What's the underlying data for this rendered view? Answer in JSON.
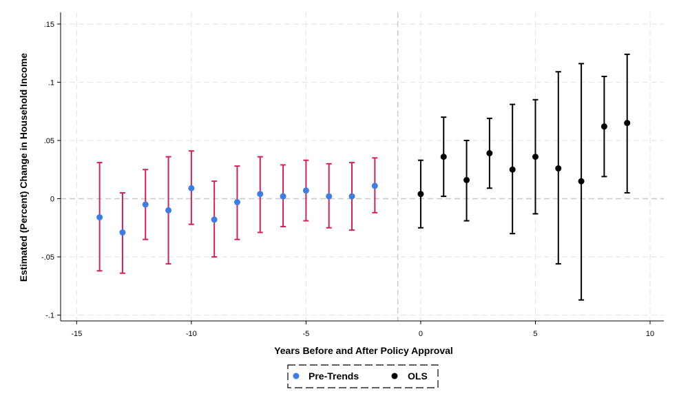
{
  "chart_data": {
    "type": "scatter",
    "xlabel": "Years Before and After Policy Approval",
    "ylabel": "Estimated (Percent) Change in Household Income",
    "xlim": [
      -15.7,
      10.6
    ],
    "ylim": [
      -0.105,
      0.16
    ],
    "x_ticks": [
      -15,
      -10,
      -5,
      0,
      5,
      10
    ],
    "x_tick_labels": [
      "-15",
      "-10",
      "-5",
      "0",
      "5",
      "10"
    ],
    "y_ticks": [
      -0.1,
      -0.05,
      0,
      0.05,
      0.1,
      0.15
    ],
    "y_tick_labels": [
      "-.1",
      "-.05",
      "0",
      ".05",
      ".1",
      ".15"
    ],
    "grid": true,
    "reference_lines": {
      "x": -1,
      "y": 0
    },
    "legend_position": "bottom-center",
    "series": [
      {
        "name": "Pre-Trends",
        "point_color": "#3c7de8",
        "ci_color": "#d4205a",
        "points": [
          {
            "x": -14,
            "y": -0.016,
            "lo": -0.062,
            "hi": 0.031
          },
          {
            "x": -13,
            "y": -0.029,
            "lo": -0.064,
            "hi": 0.005
          },
          {
            "x": -12,
            "y": -0.005,
            "lo": -0.035,
            "hi": 0.025
          },
          {
            "x": -11,
            "y": -0.01,
            "lo": -0.056,
            "hi": 0.036
          },
          {
            "x": -10,
            "y": 0.009,
            "lo": -0.022,
            "hi": 0.041
          },
          {
            "x": -9,
            "y": -0.018,
            "lo": -0.05,
            "hi": 0.015
          },
          {
            "x": -8,
            "y": -0.003,
            "lo": -0.035,
            "hi": 0.028
          },
          {
            "x": -7,
            "y": 0.004,
            "lo": -0.029,
            "hi": 0.036
          },
          {
            "x": -6,
            "y": 0.002,
            "lo": -0.024,
            "hi": 0.029
          },
          {
            "x": -5,
            "y": 0.007,
            "lo": -0.019,
            "hi": 0.033
          },
          {
            "x": -4,
            "y": 0.002,
            "lo": -0.025,
            "hi": 0.03
          },
          {
            "x": -3,
            "y": 0.002,
            "lo": -0.027,
            "hi": 0.031
          },
          {
            "x": -2,
            "y": 0.011,
            "lo": -0.012,
            "hi": 0.035
          }
        ]
      },
      {
        "name": "OLS",
        "point_color": "#000000",
        "ci_color": "#000000",
        "points": [
          {
            "x": 0,
            "y": 0.004,
            "lo": -0.025,
            "hi": 0.033
          },
          {
            "x": 1,
            "y": 0.036,
            "lo": 0.002,
            "hi": 0.07
          },
          {
            "x": 2,
            "y": 0.016,
            "lo": -0.019,
            "hi": 0.05
          },
          {
            "x": 3,
            "y": 0.039,
            "lo": 0.009,
            "hi": 0.069
          },
          {
            "x": 4,
            "y": 0.025,
            "lo": -0.03,
            "hi": 0.081
          },
          {
            "x": 5,
            "y": 0.036,
            "lo": -0.013,
            "hi": 0.085
          },
          {
            "x": 6,
            "y": 0.026,
            "lo": -0.056,
            "hi": 0.109
          },
          {
            "x": 7,
            "y": 0.015,
            "lo": -0.087,
            "hi": 0.116
          },
          {
            "x": 8,
            "y": 0.062,
            "lo": 0.019,
            "hi": 0.105
          },
          {
            "x": 9,
            "y": 0.065,
            "lo": 0.005,
            "hi": 0.124
          }
        ]
      }
    ]
  }
}
